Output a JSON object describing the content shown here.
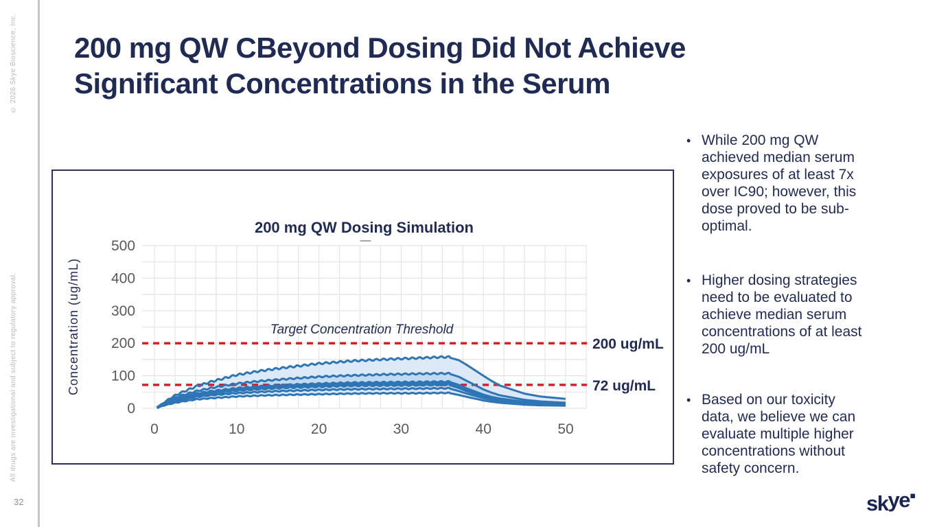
{
  "slide": {
    "title_line1": "200 mg QW CBeyond Dosing Did Not Achieve",
    "title_line2": "Significant Concentrations in the Serum",
    "page_number": "32",
    "copyright_vertical": "© 2026 Skye Bioscience, Inc.",
    "disclaimer_vertical": "All drugs are investigational and subject to regulatory approval.",
    "logo_text_left": "sk",
    "logo_text_right": "ye",
    "logo_dot": "▪",
    "colors": {
      "title_navy": "#1f2a55",
      "chart_border": "#2b2e5f",
      "curve_blue": "#2e75b6",
      "band_outer": "#d9e7f5",
      "band_inner": "#bed8ee",
      "threshold_red": "#e11b22",
      "grid": "#e4e4e4",
      "tick_gray": "#595959"
    }
  },
  "bullets": [
    {
      "lines": [
        "While 200 mg QW",
        "achieved median serum",
        "exposures of at least 7x",
        "over IC90; however, this",
        "dose proved to be sub-",
        "optimal."
      ]
    },
    {
      "lines": [
        "Higher dosing strategies",
        "need to be evaluated to",
        "achieve median serum",
        "concentrations of at least",
        "200 ug/mL"
      ]
    },
    {
      "lines": [
        "Based on our toxicity",
        "data, we believe we can",
        "evaluate multiple higher",
        "concentrations without",
        "safety concern."
      ]
    }
  ],
  "chart_data": {
    "type": "line",
    "title": "200 mg QW Dosing Simulation",
    "xlabel": "",
    "ylabel": "Concentration (ug/mL)",
    "xlim": [
      -1.5,
      52.5
    ],
    "ylim": [
      0,
      520
    ],
    "x_ticks": [
      0,
      10,
      20,
      30,
      40,
      50
    ],
    "y_ticks": [
      0,
      100,
      200,
      300,
      400,
      500
    ],
    "x_grid_step": 2.5,
    "y_grid_step": 50,
    "grid": true,
    "legend_position": "top-center-collapsed-dash",
    "threshold_title": "Target Concentration Threshold",
    "thresholds": [
      {
        "value": 200,
        "label": "200 ug/mL"
      },
      {
        "value": 72,
        "label": "72 ug/mL"
      }
    ],
    "dosing_stop_week": 36,
    "ripple_period_weeks": 0.875,
    "x_keys": [
      0.3,
      0.5,
      1,
      2,
      3,
      5,
      7,
      10,
      13,
      16,
      20,
      24,
      28,
      32,
      35,
      36,
      37,
      38,
      40,
      41,
      42,
      45,
      47,
      50
    ],
    "series": [
      {
        "name": "p95-envelope",
        "ripple": 5,
        "y": [
          2,
          6,
          14,
          30,
          43,
          64,
          80,
          100,
          113,
          123,
          135,
          143,
          148,
          152,
          155,
          155,
          148,
          133,
          100,
          84,
          70,
          45,
          36,
          29
        ]
      },
      {
        "name": "p75-envelope",
        "ripple": 4,
        "y": [
          2,
          5,
          12,
          25,
          35,
          50,
          61,
          74,
          82,
          88,
          95,
          99,
          102,
          104,
          105,
          105,
          97,
          84,
          58,
          48,
          40,
          26,
          21,
          17
        ]
      },
      {
        "name": "p60-envelope",
        "ripple": 3.5,
        "y": [
          2,
          5,
          11,
          22,
          30,
          43,
          51,
          60,
          66,
          70,
          74,
          77,
          78,
          79,
          80,
          80,
          72,
          61,
          42,
          35,
          30,
          20,
          17,
          14
        ]
      },
      {
        "name": "median",
        "ripple": 4,
        "y": [
          2,
          4,
          10,
          20,
          27,
          39,
          46,
          54,
          59,
          63,
          66,
          69,
          70,
          71,
          72,
          72,
          64,
          54,
          37,
          31,
          26,
          17,
          14,
          12
        ]
      },
      {
        "name": "p40-envelope",
        "ripple": 3,
        "y": [
          1,
          4,
          8,
          17,
          23,
          33,
          39,
          45,
          49,
          52,
          55,
          57,
          58,
          59,
          60,
          60,
          53,
          45,
          31,
          26,
          22,
          14,
          12,
          10
        ]
      },
      {
        "name": "p05-envelope",
        "ripple": 2.5,
        "y": [
          1,
          3,
          7,
          13,
          18,
          26,
          30,
          35,
          38,
          40,
          42,
          44,
          45,
          45,
          46,
          46,
          41,
          35,
          24,
          20,
          17,
          11,
          9,
          8
        ]
      }
    ],
    "bands": [
      {
        "upper_series": 0,
        "lower_series": 5,
        "role": "outer-percentile-band"
      },
      {
        "upper_series": 1,
        "lower_series": 4,
        "role": "inner-percentile-band"
      }
    ]
  }
}
